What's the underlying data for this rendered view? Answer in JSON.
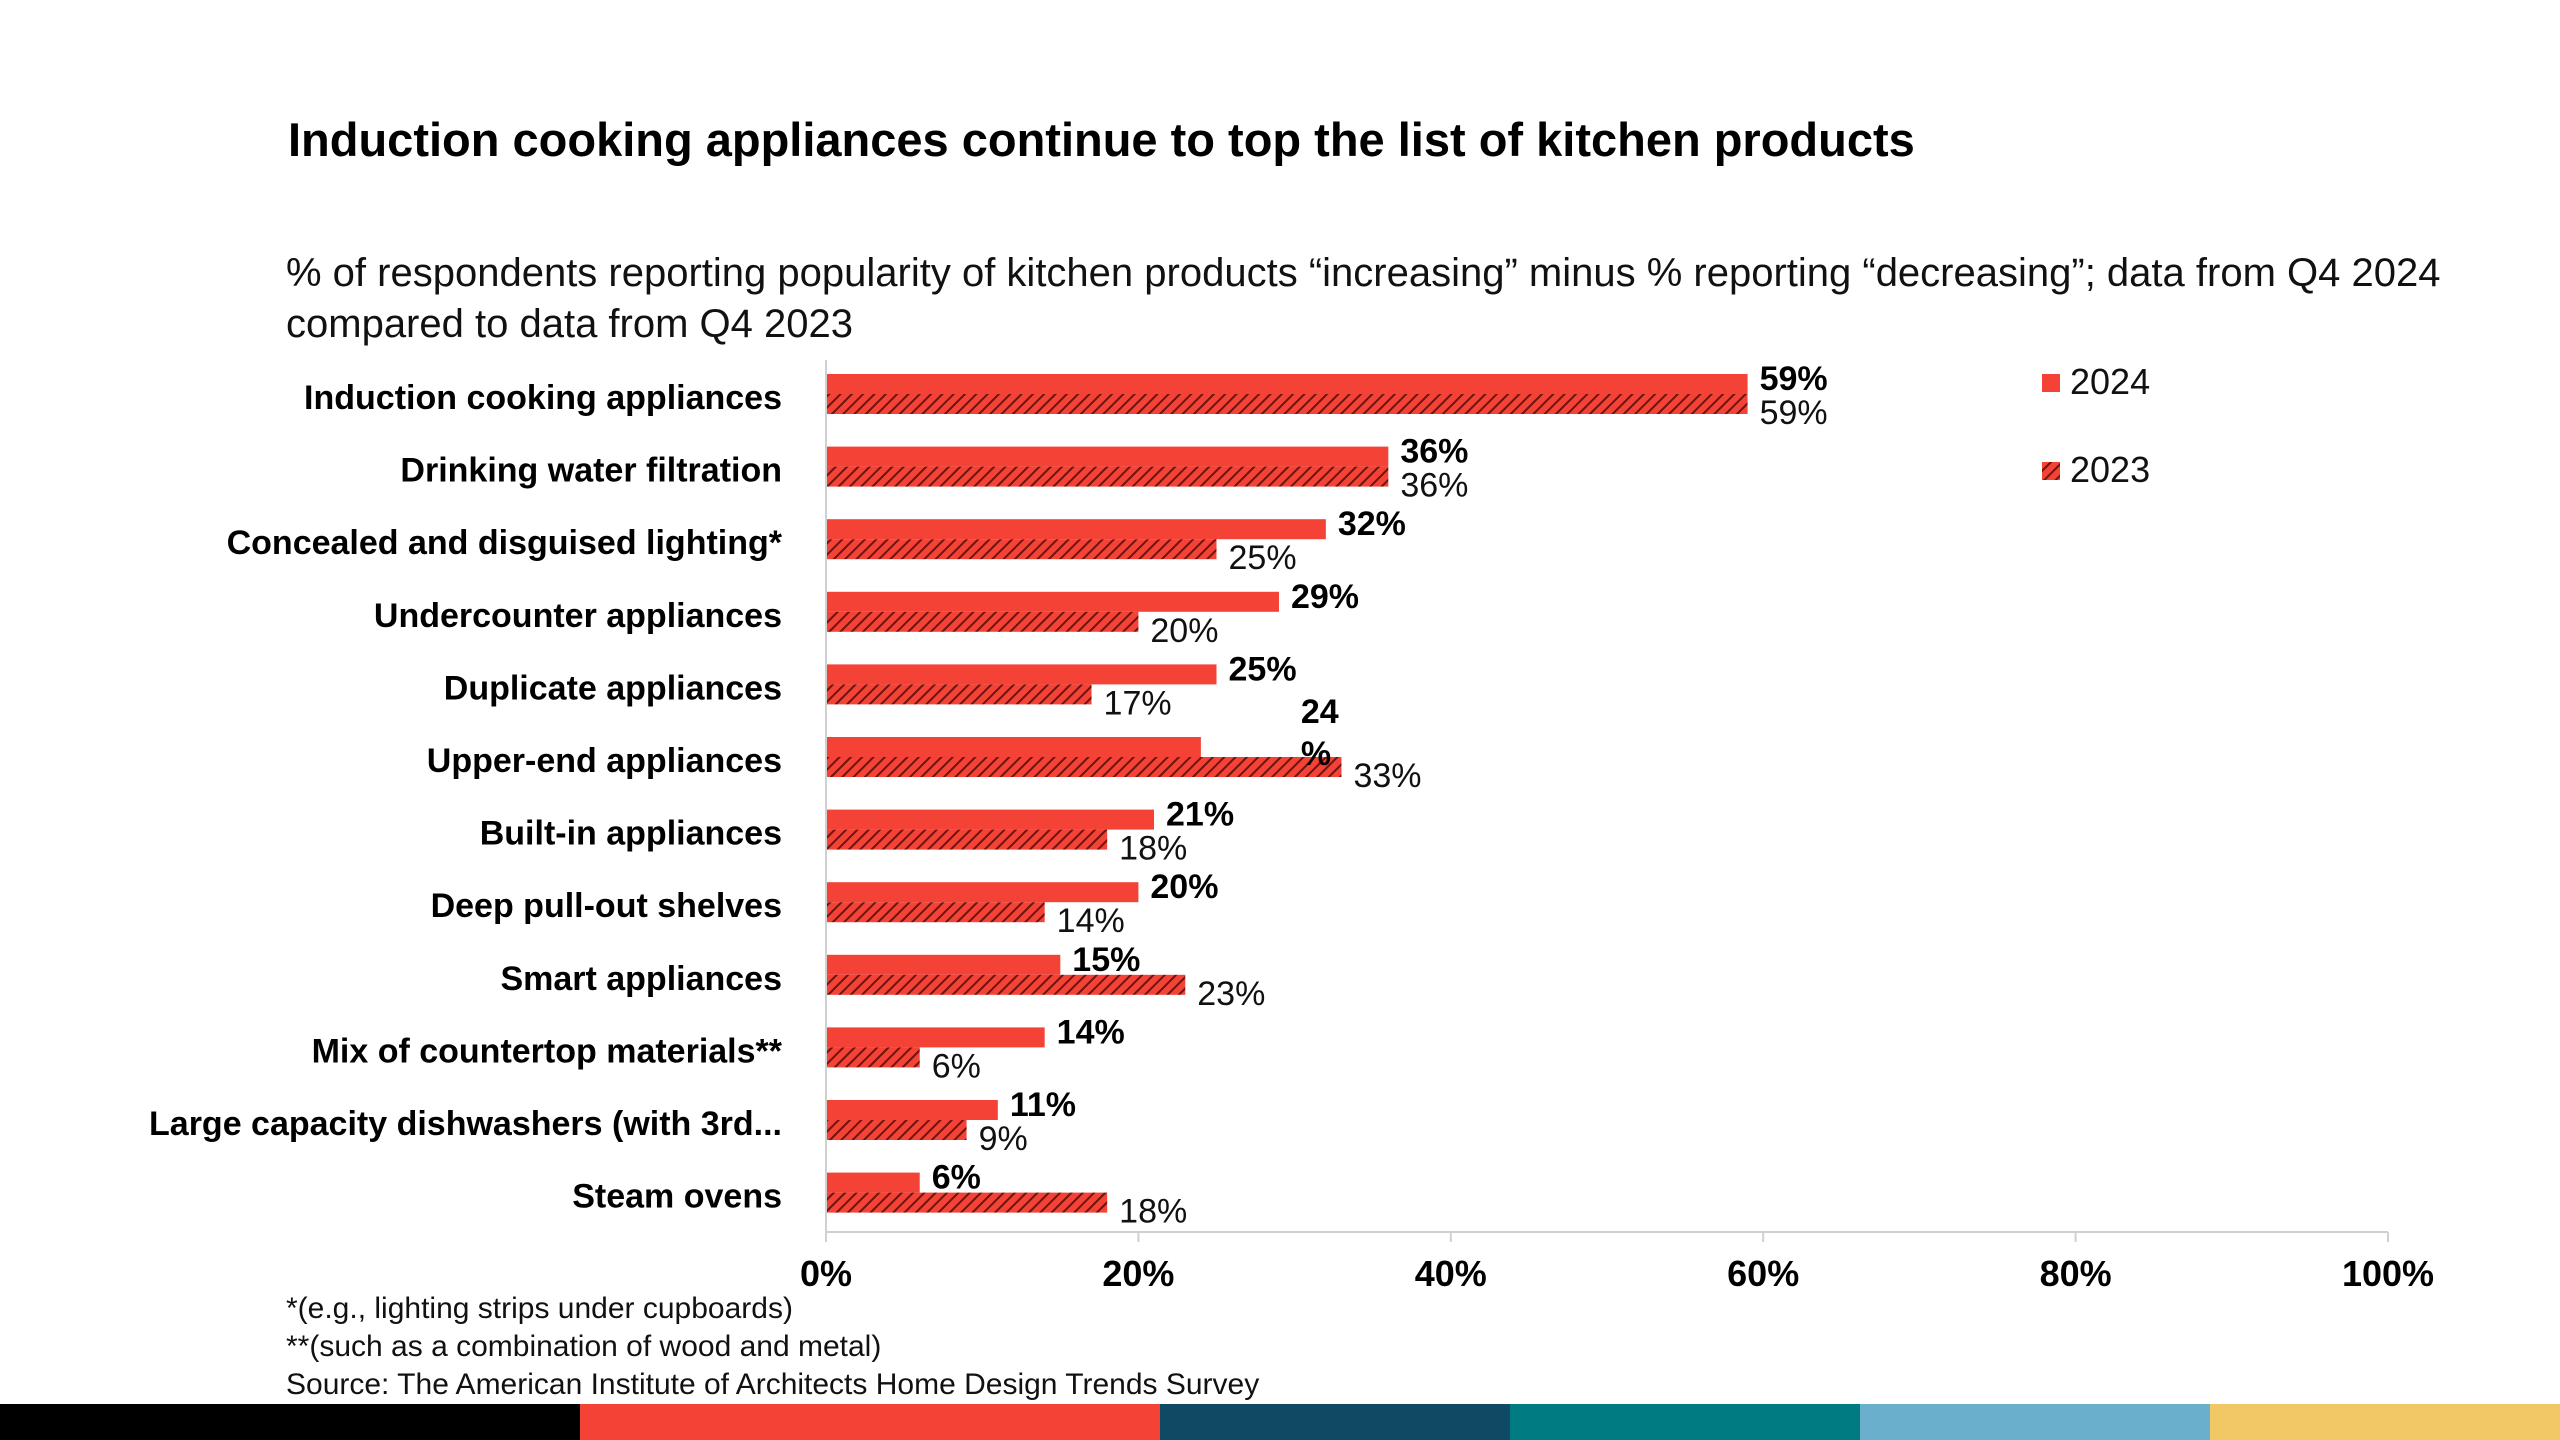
{
  "title": "Induction cooking appliances continue to top the list of kitchen products",
  "subtitle": "% of respondents reporting popularity of kitchen products “increasing” minus % reporting “decreasing”; data from Q4 2024 compared to data from Q4 2023",
  "footnotes": [
    "*(e.g., lighting strips under cupboards)",
    "**(such as a combination of wood and metal)",
    "Source: The American Institute of Architects Home Design Trends Survey"
  ],
  "colors": {
    "bar_2024": "#f44336",
    "bar_2023": "#f44336",
    "hatch": "#6b1410",
    "axis": "#d0d0d0"
  },
  "footer_colors": [
    "#000000",
    "#f44336",
    "#0e4a63",
    "#007b82",
    "#6aafcb",
    "#f2c866"
  ],
  "chart_data": {
    "type": "bar",
    "orientation": "horizontal",
    "categories": [
      "Induction cooking appliances",
      "Drinking water filtration",
      "Concealed and disguised lighting*",
      "Undercounter appliances",
      "Duplicate appliances",
      "Upper-end appliances",
      "Built-in appliances",
      "Deep pull-out shelves",
      "Smart appliances",
      "Mix of countertop materials**",
      "Large capacity dishwashers (with 3rd...",
      "Steam ovens"
    ],
    "series": [
      {
        "name": "2024",
        "values": [
          59,
          36,
          32,
          29,
          25,
          24,
          21,
          20,
          15,
          14,
          11,
          6
        ],
        "labels": [
          "59%",
          "36%",
          "32%",
          "29%",
          "25%",
          "24\n%",
          "21%",
          "20%",
          "15%",
          "14%",
          "11%",
          "6%"
        ],
        "style": "solid"
      },
      {
        "name": "2023",
        "values": [
          59,
          36,
          25,
          20,
          17,
          33,
          18,
          14,
          23,
          6,
          9,
          18
        ],
        "labels": [
          "59%",
          "36%",
          "25%",
          "20%",
          "17%",
          "33%",
          "18%",
          "14%",
          "23%",
          "6%",
          "9%",
          "18%"
        ],
        "style": "hatched"
      }
    ],
    "xlim": [
      0,
      100
    ],
    "xticks": [
      0,
      20,
      40,
      60,
      80,
      100
    ],
    "xtick_labels": [
      "0%",
      "20%",
      "40%",
      "60%",
      "80%",
      "100%"
    ],
    "legend_position": "top-right",
    "grid": false
  }
}
